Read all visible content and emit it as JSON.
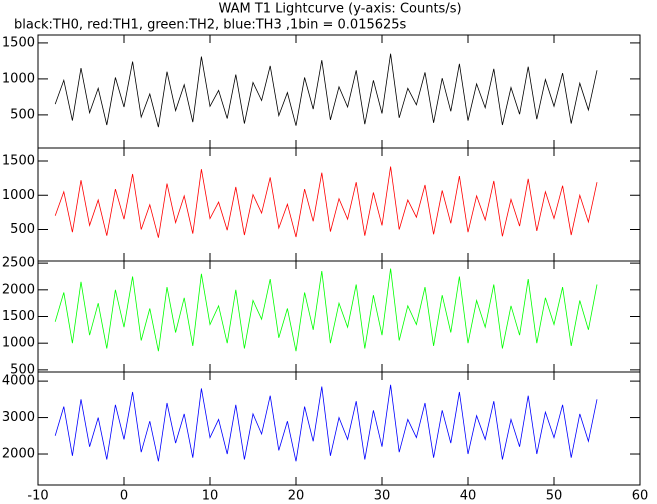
{
  "chart_data": [
    {
      "type": "line",
      "title": "WAM T1 Lightcurve (y-axis: Counts/s)",
      "subtitle": "black:TH0, red:TH1, green:TH2, blue:TH3 ,1bin = 0.015625s",
      "xlim": [
        -10,
        60
      ],
      "xticks": [
        -10,
        0,
        10,
        20,
        30,
        40,
        50,
        60
      ],
      "ylim": [
        40,
        1610
      ],
      "yticks": [
        500,
        1000,
        1500
      ],
      "color": "#000000",
      "x": [
        -8,
        -7,
        -6,
        -5,
        -4,
        -3,
        -2,
        -1,
        0,
        1,
        2,
        3,
        4,
        5,
        6,
        7,
        8,
        9,
        10,
        11,
        12,
        13,
        14,
        15,
        16,
        17,
        18,
        19,
        20,
        21,
        22,
        23,
        24,
        25,
        26,
        27,
        28,
        29,
        30,
        31,
        32,
        33,
        34,
        35,
        36,
        37,
        38,
        39,
        40,
        41,
        42,
        43,
        44,
        45,
        46,
        47,
        48,
        49,
        50,
        51,
        52,
        53,
        54,
        55
      ],
      "values": [
        650,
        980,
        420,
        1150,
        530,
        870,
        360,
        1020,
        610,
        1240,
        470,
        790,
        330,
        1100,
        560,
        920,
        400,
        1310,
        620,
        840,
        450,
        1060,
        380,
        950,
        700,
        1180,
        490,
        810,
        350,
        1020,
        580,
        1260,
        430,
        890,
        610,
        1120,
        370,
        980,
        520,
        1350,
        460,
        870,
        640,
        1090,
        390,
        1010,
        550,
        1210,
        420,
        930,
        600,
        1140,
        360,
        880,
        510,
        1170,
        440,
        990,
        620,
        1080,
        380,
        940,
        570,
        1120
      ]
    },
    {
      "type": "line",
      "xlim": [
        -10,
        60
      ],
      "xticks": [
        -10,
        0,
        10,
        20,
        30,
        40,
        50,
        60
      ],
      "ylim": [
        40,
        1690
      ],
      "yticks": [
        500,
        1000,
        1500
      ],
      "color": "#ff0000",
      "x": [
        -8,
        -7,
        -6,
        -5,
        -4,
        -3,
        -2,
        -1,
        0,
        1,
        2,
        3,
        4,
        5,
        6,
        7,
        8,
        9,
        10,
        11,
        12,
        13,
        14,
        15,
        16,
        17,
        18,
        19,
        20,
        21,
        22,
        23,
        24,
        25,
        26,
        27,
        28,
        29,
        30,
        31,
        32,
        33,
        34,
        35,
        36,
        37,
        38,
        39,
        40,
        41,
        42,
        43,
        44,
        45,
        46,
        47,
        48,
        49,
        50,
        51,
        52,
        53,
        54,
        55
      ],
      "values": [
        700,
        1050,
        460,
        1220,
        560,
        930,
        410,
        1090,
        650,
        1310,
        500,
        860,
        380,
        1170,
        600,
        990,
        440,
        1380,
        660,
        900,
        490,
        1120,
        420,
        1010,
        740,
        1260,
        520,
        870,
        390,
        1090,
        620,
        1330,
        470,
        950,
        650,
        1190,
        410,
        1040,
        560,
        1420,
        500,
        930,
        680,
        1150,
        430,
        1070,
        590,
        1280,
        460,
        990,
        640,
        1210,
        400,
        940,
        550,
        1240,
        480,
        1050,
        660,
        1140,
        420,
        1000,
        610,
        1190
      ]
    },
    {
      "type": "line",
      "xlim": [
        -10,
        60
      ],
      "xticks": [
        -10,
        0,
        10,
        20,
        30,
        40,
        50,
        60
      ],
      "ylim": [
        460,
        2540
      ],
      "yticks": [
        500,
        1000,
        1500,
        2000,
        2500
      ],
      "color": "#00ff00",
      "x": [
        -8,
        -7,
        -6,
        -5,
        -4,
        -3,
        -2,
        -1,
        0,
        1,
        2,
        3,
        4,
        5,
        6,
        7,
        8,
        9,
        10,
        11,
        12,
        13,
        14,
        15,
        16,
        17,
        18,
        19,
        20,
        21,
        22,
        23,
        24,
        25,
        26,
        27,
        28,
        29,
        30,
        31,
        32,
        33,
        34,
        35,
        36,
        37,
        38,
        39,
        40,
        41,
        42,
        43,
        44,
        45,
        46,
        47,
        48,
        49,
        50,
        51,
        52,
        53,
        54,
        55
      ],
      "values": [
        1400,
        1950,
        1000,
        2150,
        1150,
        1750,
        900,
        2000,
        1300,
        2250,
        1050,
        1650,
        850,
        2050,
        1200,
        1850,
        950,
        2300,
        1350,
        1700,
        1000,
        2000,
        900,
        1800,
        1450,
        2200,
        1100,
        1650,
        850,
        1950,
        1250,
        2350,
        1000,
        1750,
        1300,
        2100,
        900,
        1900,
        1150,
        2400,
        1050,
        1700,
        1350,
        2050,
        950,
        1900,
        1200,
        2250,
        1000,
        1800,
        1300,
        2100,
        900,
        1700,
        1150,
        2200,
        1000,
        1850,
        1350,
        2050,
        950,
        1800,
        1250,
        2100
      ]
    },
    {
      "type": "line",
      "xlim": [
        -10,
        60
      ],
      "xticks": [
        -10,
        0,
        10,
        20,
        30,
        40,
        50,
        60
      ],
      "ylim": [
        1150,
        4250
      ],
      "yticks": [
        2000,
        3000,
        4000
      ],
      "color": "#0000ff",
      "x": [
        -8,
        -7,
        -6,
        -5,
        -4,
        -3,
        -2,
        -1,
        0,
        1,
        2,
        3,
        4,
        5,
        6,
        7,
        8,
        9,
        10,
        11,
        12,
        13,
        14,
        15,
        16,
        17,
        18,
        19,
        20,
        21,
        22,
        23,
        24,
        25,
        26,
        27,
        28,
        29,
        30,
        31,
        32,
        33,
        34,
        35,
        36,
        37,
        38,
        39,
        40,
        41,
        42,
        43,
        44,
        45,
        46,
        47,
        48,
        49,
        50,
        51,
        52,
        53,
        54,
        55
      ],
      "values": [
        2500,
        3300,
        1950,
        3500,
        2200,
        3000,
        1850,
        3350,
        2400,
        3700,
        2050,
        2900,
        1800,
        3400,
        2300,
        3100,
        1900,
        3800,
        2450,
        2950,
        2000,
        3350,
        1850,
        3100,
        2550,
        3600,
        2100,
        2900,
        1800,
        3300,
        2350,
        3850,
        1950,
        3000,
        2400,
        3450,
        1850,
        3200,
        2200,
        3900,
        2050,
        2950,
        2450,
        3400,
        1900,
        3200,
        2300,
        3700,
        2000,
        3050,
        2400,
        3450,
        1850,
        2950,
        2200,
        3600,
        2000,
        3150,
        2450,
        3350,
        1900,
        3100,
        2350,
        3500
      ]
    }
  ]
}
